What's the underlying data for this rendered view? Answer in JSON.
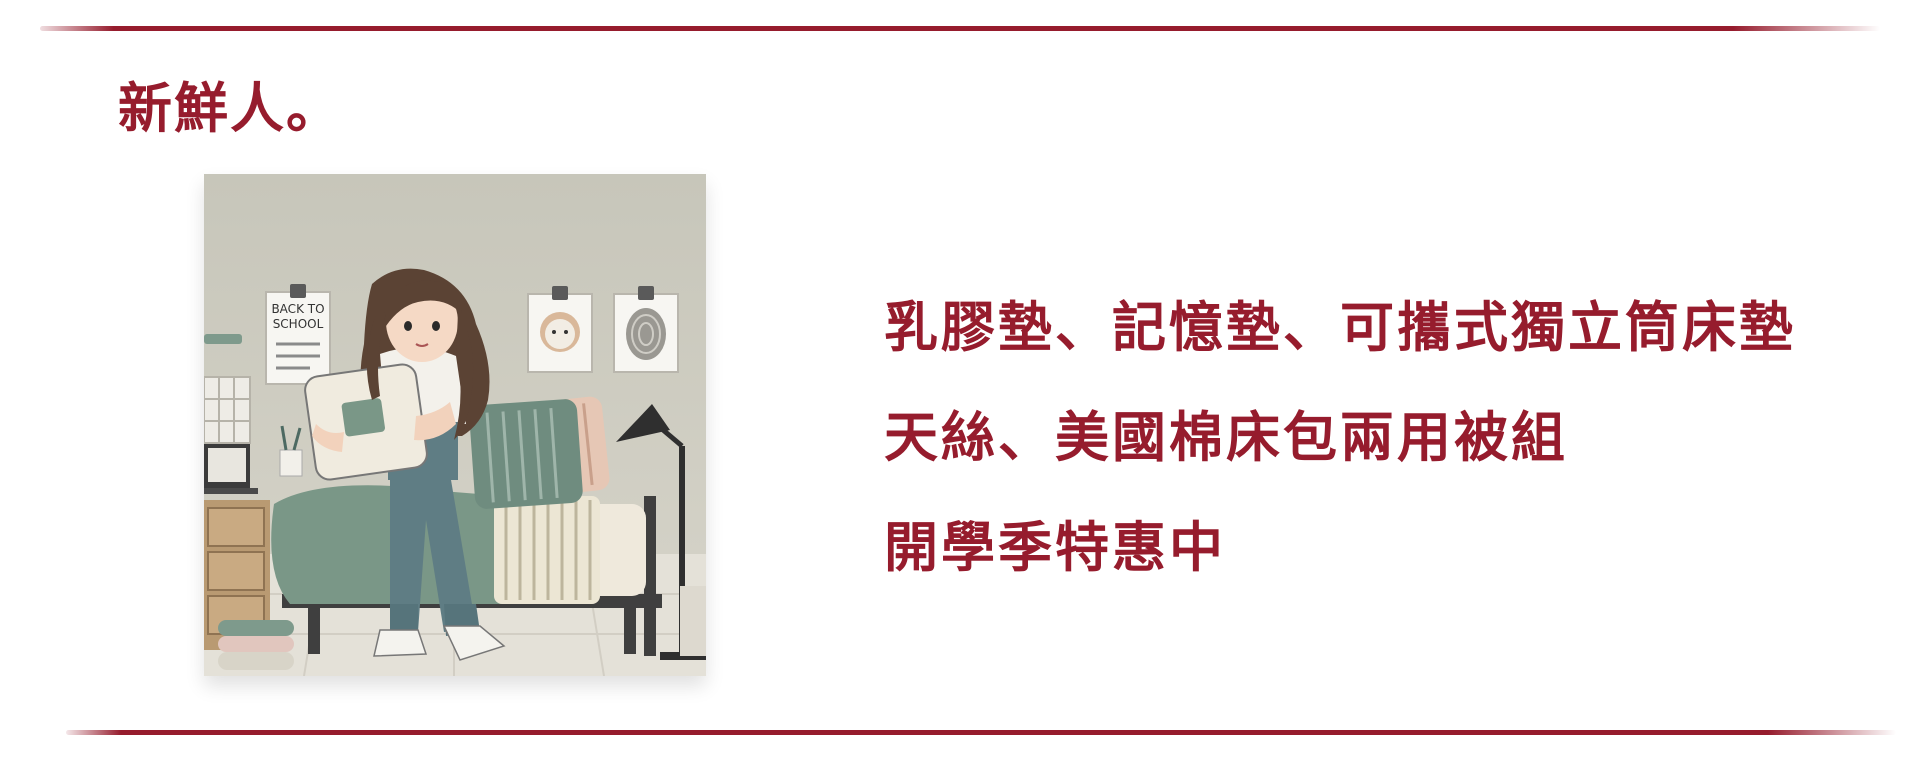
{
  "brand_color": "#961c2d",
  "heading": "新鮮人。",
  "illustration": {
    "poster_text_line1": "BACK TO",
    "poster_text_line2": "SCHOOL"
  },
  "promo_lines": [
    "乳膠墊、記憶墊、可攜式獨立筒床墊",
    "天絲、美國棉床包兩用被組",
    "開學季特惠中"
  ]
}
